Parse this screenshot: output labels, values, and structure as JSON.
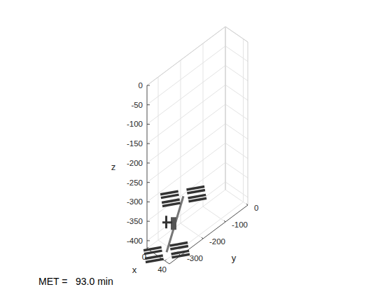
{
  "chart_data": {
    "type": "3d",
    "annotation": "MET =   93.0 min",
    "xlabel": "x",
    "ylabel": "y",
    "zlabel": "z",
    "xlim": [
      0,
      50
    ],
    "ylim": [
      -350,
      0
    ],
    "zlim": [
      -420,
      0
    ],
    "xticks": [
      0,
      40
    ],
    "yticks": [
      0,
      -100,
      -200,
      -300
    ],
    "zticks": [
      0,
      -50,
      -100,
      -150,
      -200,
      -250,
      -300,
      -350,
      -400
    ],
    "grid": true,
    "marker": "station",
    "x": [
      25
    ],
    "y": [
      -275
    ],
    "z": [
      -370
    ]
  }
}
